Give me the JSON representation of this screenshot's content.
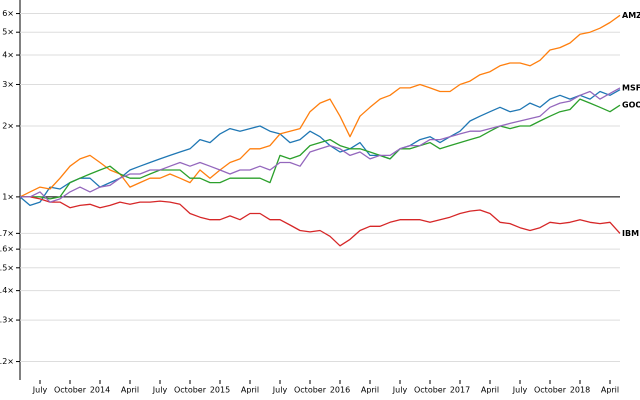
{
  "chart_data": {
    "type": "line",
    "log_scale": true,
    "grid": true,
    "baseline": 1,
    "x": [
      "2013-05",
      "2013-06",
      "2013-07",
      "2013-08",
      "2013-09",
      "2013-10",
      "2013-11",
      "2013-12",
      "2014-01",
      "2014-02",
      "2014-03",
      "2014-04",
      "2014-05",
      "2014-06",
      "2014-07",
      "2014-08",
      "2014-09",
      "2014-10",
      "2014-11",
      "2014-12",
      "2015-01",
      "2015-02",
      "2015-03",
      "2015-04",
      "2015-05",
      "2015-06",
      "2015-07",
      "2015-08",
      "2015-09",
      "2015-10",
      "2015-11",
      "2015-12",
      "2016-01",
      "2016-02",
      "2016-03",
      "2016-04",
      "2016-05",
      "2016-06",
      "2016-07",
      "2016-08",
      "2016-09",
      "2016-10",
      "2016-11",
      "2016-12",
      "2017-01",
      "2017-02",
      "2017-03",
      "2017-04",
      "2017-05",
      "2017-06",
      "2017-07",
      "2017-08",
      "2017-09",
      "2017-10",
      "2017-11",
      "2017-12",
      "2018-01",
      "2018-02",
      "2018-03",
      "2018-04",
      "2018-05"
    ],
    "xlim": [
      "2013-05",
      "2018-05"
    ],
    "xticks": [
      {
        "value": "2013-07",
        "label": "July"
      },
      {
        "value": "2013-10",
        "label": "October"
      },
      {
        "value": "2014-01",
        "label": "2014"
      },
      {
        "value": "2014-04",
        "label": "April"
      },
      {
        "value": "2014-07",
        "label": "July"
      },
      {
        "value": "2014-10",
        "label": "October"
      },
      {
        "value": "2015-01",
        "label": "2015"
      },
      {
        "value": "2015-04",
        "label": "April"
      },
      {
        "value": "2015-07",
        "label": "July"
      },
      {
        "value": "2015-10",
        "label": "October"
      },
      {
        "value": "2016-01",
        "label": "2016"
      },
      {
        "value": "2016-04",
        "label": "April"
      },
      {
        "value": "2016-07",
        "label": "July"
      },
      {
        "value": "2016-10",
        "label": "October"
      },
      {
        "value": "2017-01",
        "label": "2017"
      },
      {
        "value": "2017-04",
        "label": "April"
      },
      {
        "value": "2017-07",
        "label": "July"
      },
      {
        "value": "2017-10",
        "label": "October"
      },
      {
        "value": "2018-01",
        "label": "2018"
      },
      {
        "value": "2018-04",
        "label": "April"
      }
    ],
    "ylim": [
      0.167,
      6.85
    ],
    "yticks": [
      {
        "value": 0.2,
        "label": "0.2×"
      },
      {
        "value": 0.3,
        "label": "0.3×"
      },
      {
        "value": 0.4,
        "label": "0.4×"
      },
      {
        "value": 0.5,
        "label": "0.5×"
      },
      {
        "value": 0.6,
        "label": "0.6×"
      },
      {
        "value": 0.7,
        "label": "0.7×"
      },
      {
        "value": 1,
        "label": "1×"
      },
      {
        "value": 2,
        "label": "2×"
      },
      {
        "value": 3,
        "label": "3×"
      },
      {
        "value": 4,
        "label": "4×"
      },
      {
        "value": 5,
        "label": "5×"
      },
      {
        "value": 6,
        "label": "6×"
      }
    ],
    "series": [
      {
        "color": "#1f77b4",
        "values": [
          1,
          0.92,
          0.95,
          1.1,
          1.08,
          1.15,
          1.2,
          1.2,
          1.1,
          1.15,
          1.2,
          1.3,
          1.35,
          1.4,
          1.45,
          1.5,
          1.55,
          1.6,
          1.75,
          1.7,
          1.85,
          1.95,
          1.9,
          1.95,
          2.0,
          1.9,
          1.85,
          1.7,
          1.75,
          1.9,
          1.8,
          1.65,
          1.55,
          1.6,
          1.7,
          1.5,
          1.5,
          1.45,
          1.6,
          1.65,
          1.75,
          1.8,
          1.7,
          1.8,
          1.9,
          2.1,
          2.2,
          2.3,
          2.4,
          2.3,
          2.35,
          2.5,
          2.4,
          2.6,
          2.7,
          2.6,
          2.7,
          2.6,
          2.8,
          2.7,
          2.85
        ]
      },
      {
        "name": "AMZN",
        "color": "#ff7f0e",
        "values": [
          1,
          1.05,
          1.1,
          1.08,
          1.2,
          1.35,
          1.45,
          1.5,
          1.4,
          1.3,
          1.25,
          1.1,
          1.15,
          1.2,
          1.2,
          1.25,
          1.2,
          1.15,
          1.3,
          1.2,
          1.3,
          1.4,
          1.45,
          1.6,
          1.6,
          1.65,
          1.85,
          1.9,
          1.95,
          2.3,
          2.5,
          2.6,
          2.2,
          1.8,
          2.2,
          2.4,
          2.6,
          2.7,
          2.9,
          2.9,
          3.0,
          2.9,
          2.8,
          2.8,
          3.0,
          3.1,
          3.3,
          3.4,
          3.6,
          3.7,
          3.7,
          3.6,
          3.8,
          4.2,
          4.3,
          4.5,
          4.9,
          5.0,
          5.2,
          5.5,
          5.9
        ]
      },
      {
        "name": "GOOG",
        "color": "#2ca02c",
        "values": [
          1,
          1.0,
          1.0,
          0.98,
          1.0,
          1.15,
          1.2,
          1.25,
          1.3,
          1.35,
          1.25,
          1.2,
          1.2,
          1.25,
          1.3,
          1.3,
          1.3,
          1.2,
          1.2,
          1.15,
          1.15,
          1.2,
          1.2,
          1.2,
          1.2,
          1.15,
          1.5,
          1.45,
          1.5,
          1.65,
          1.7,
          1.75,
          1.65,
          1.6,
          1.6,
          1.55,
          1.5,
          1.45,
          1.6,
          1.6,
          1.65,
          1.7,
          1.6,
          1.65,
          1.7,
          1.75,
          1.8,
          1.9,
          2.0,
          1.95,
          2.0,
          2.0,
          2.1,
          2.2,
          2.3,
          2.35,
          2.6,
          2.5,
          2.4,
          2.3,
          2.45
        ]
      },
      {
        "name": "IBM",
        "color": "#d62728",
        "values": [
          1,
          1.0,
          0.98,
          0.95,
          0.95,
          0.9,
          0.92,
          0.93,
          0.9,
          0.92,
          0.95,
          0.93,
          0.95,
          0.95,
          0.96,
          0.95,
          0.93,
          0.85,
          0.82,
          0.8,
          0.8,
          0.83,
          0.8,
          0.85,
          0.85,
          0.8,
          0.8,
          0.76,
          0.72,
          0.71,
          0.72,
          0.68,
          0.62,
          0.66,
          0.72,
          0.75,
          0.75,
          0.78,
          0.8,
          0.8,
          0.8,
          0.78,
          0.8,
          0.82,
          0.85,
          0.87,
          0.88,
          0.85,
          0.78,
          0.77,
          0.74,
          0.72,
          0.74,
          0.78,
          0.77,
          0.78,
          0.8,
          0.78,
          0.77,
          0.78,
          0.7
        ]
      },
      {
        "name": "MSFT",
        "color": "#9467bd",
        "values": [
          1,
          1.0,
          1.05,
          0.95,
          0.98,
          1.05,
          1.1,
          1.05,
          1.1,
          1.12,
          1.2,
          1.25,
          1.25,
          1.3,
          1.3,
          1.35,
          1.4,
          1.35,
          1.4,
          1.35,
          1.3,
          1.25,
          1.3,
          1.3,
          1.35,
          1.3,
          1.4,
          1.4,
          1.35,
          1.55,
          1.6,
          1.65,
          1.6,
          1.5,
          1.55,
          1.45,
          1.5,
          1.5,
          1.6,
          1.65,
          1.65,
          1.75,
          1.75,
          1.8,
          1.85,
          1.9,
          1.9,
          1.95,
          2.0,
          2.05,
          2.1,
          2.15,
          2.2,
          2.4,
          2.5,
          2.55,
          2.7,
          2.8,
          2.6,
          2.75,
          2.9
        ]
      }
    ]
  }
}
